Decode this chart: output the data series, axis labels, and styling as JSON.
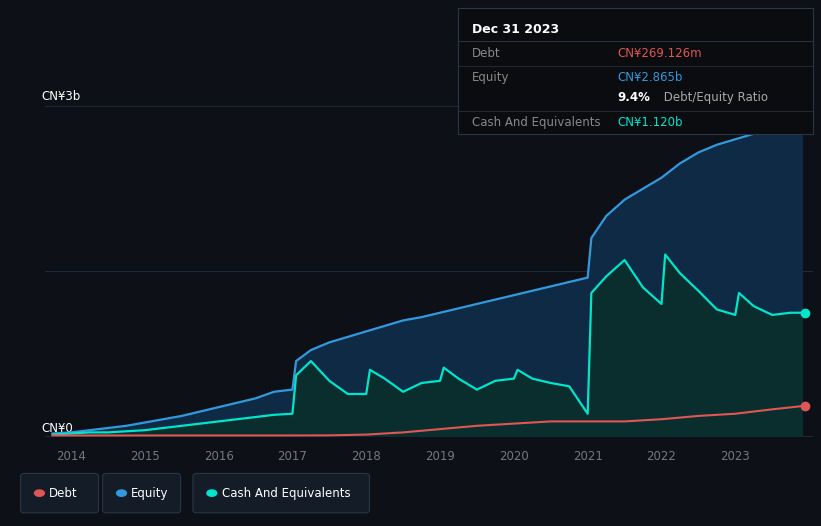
{
  "bg_color": "#0d1117",
  "plot_bg_color": "#0d1117",
  "ylabel_top": "CN¥3b",
  "ylabel_bottom": "CN¥0",
  "grid_color": "#1c2a3a",
  "debt_color": "#e05555",
  "equity_color": "#3399dd",
  "cash_color": "#00e5cc",
  "equity_fill": "#0e2a45",
  "cash_fill": "#0a2e2e",
  "equity_x": [
    2013.75,
    2014.0,
    2014.25,
    2014.5,
    2014.75,
    2015.0,
    2015.25,
    2015.5,
    2015.75,
    2016.0,
    2016.25,
    2016.5,
    2016.75,
    2017.0,
    2017.05,
    2017.25,
    2017.5,
    2017.75,
    2018.0,
    2018.25,
    2018.5,
    2018.75,
    2019.0,
    2019.25,
    2019.5,
    2019.75,
    2020.0,
    2020.25,
    2020.5,
    2020.75,
    2021.0,
    2021.05,
    2021.25,
    2021.5,
    2021.75,
    2022.0,
    2022.25,
    2022.5,
    2022.75,
    2023.0,
    2023.25,
    2023.5,
    2023.75,
    2023.9
  ],
  "equity_y": [
    0.02,
    0.03,
    0.05,
    0.07,
    0.09,
    0.12,
    0.15,
    0.18,
    0.22,
    0.26,
    0.3,
    0.34,
    0.4,
    0.42,
    0.68,
    0.78,
    0.85,
    0.9,
    0.95,
    1.0,
    1.05,
    1.08,
    1.12,
    1.16,
    1.2,
    1.24,
    1.28,
    1.32,
    1.36,
    1.4,
    1.44,
    1.8,
    2.0,
    2.15,
    2.25,
    2.35,
    2.48,
    2.58,
    2.65,
    2.7,
    2.75,
    2.8,
    2.86,
    2.865
  ],
  "cash_x": [
    2013.75,
    2014.0,
    2014.25,
    2014.5,
    2014.75,
    2015.0,
    2015.25,
    2015.5,
    2015.75,
    2016.0,
    2016.25,
    2016.5,
    2016.75,
    2017.0,
    2017.05,
    2017.25,
    2017.5,
    2017.75,
    2018.0,
    2018.05,
    2018.25,
    2018.5,
    2018.75,
    2019.0,
    2019.05,
    2019.25,
    2019.5,
    2019.75,
    2020.0,
    2020.05,
    2020.25,
    2020.5,
    2020.75,
    2021.0,
    2021.05,
    2021.25,
    2021.5,
    2021.75,
    2022.0,
    2022.05,
    2022.25,
    2022.5,
    2022.75,
    2023.0,
    2023.05,
    2023.25,
    2023.5,
    2023.75,
    2023.9
  ],
  "cash_y": [
    0.01,
    0.02,
    0.03,
    0.03,
    0.04,
    0.05,
    0.07,
    0.09,
    0.11,
    0.13,
    0.15,
    0.17,
    0.19,
    0.2,
    0.55,
    0.68,
    0.5,
    0.38,
    0.38,
    0.6,
    0.52,
    0.4,
    0.48,
    0.5,
    0.62,
    0.52,
    0.42,
    0.5,
    0.52,
    0.6,
    0.52,
    0.48,
    0.45,
    0.2,
    1.3,
    1.45,
    1.6,
    1.35,
    1.2,
    1.65,
    1.48,
    1.32,
    1.15,
    1.1,
    1.3,
    1.18,
    1.1,
    1.12,
    1.12
  ],
  "debt_x": [
    2013.75,
    2014.0,
    2014.5,
    2015.0,
    2015.5,
    2016.0,
    2016.5,
    2017.0,
    2017.5,
    2018.0,
    2018.5,
    2019.0,
    2019.5,
    2020.0,
    2020.5,
    2021.0,
    2021.5,
    2022.0,
    2022.5,
    2023.0,
    2023.5,
    2023.9
  ],
  "debt_y": [
    0.002,
    0.002,
    0.002,
    0.002,
    0.002,
    0.002,
    0.002,
    0.002,
    0.003,
    0.01,
    0.03,
    0.06,
    0.09,
    0.11,
    0.13,
    0.13,
    0.13,
    0.15,
    0.18,
    0.2,
    0.24,
    0.269
  ],
  "xlim": [
    2013.65,
    2024.05
  ],
  "ylim": [
    -0.08,
    3.25
  ],
  "tick_years": [
    2014,
    2015,
    2016,
    2017,
    2018,
    2019,
    2020,
    2021,
    2022,
    2023
  ],
  "dot_x": 2023.95,
  "dot_equity_y": 2.865,
  "dot_cash_y": 1.12,
  "dot_debt_y": 0.269,
  "tooltip_title": "Dec 31 2023",
  "tooltip_debt_label": "Debt",
  "tooltip_debt_value": "CN¥269.126m",
  "tooltip_equity_label": "Equity",
  "tooltip_equity_value": "CN¥2.865b",
  "tooltip_ratio": "9.4%",
  "tooltip_ratio_suffix": " Debt/Equity Ratio",
  "tooltip_cash_label": "Cash And Equivalents",
  "tooltip_cash_value": "CN¥1.120b",
  "legend_items": [
    {
      "label": "Debt",
      "color": "#e05555"
    },
    {
      "label": "Equity",
      "color": "#3399dd"
    },
    {
      "label": "Cash And Equivalents",
      "color": "#00e5cc"
    }
  ]
}
